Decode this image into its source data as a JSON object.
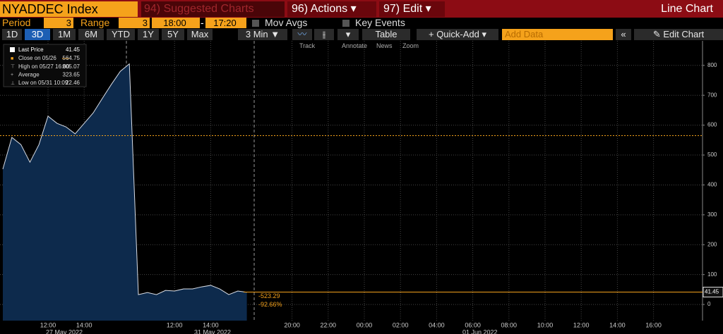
{
  "toolbar": {
    "security": "NYADDEC Index",
    "menus": [
      "94) Suggested Charts",
      "96) Actions",
      "97) Edit"
    ],
    "chart_type": "Line Chart",
    "period_label": "Period",
    "period_value": "3",
    "range_label": "Range",
    "range_value": "3",
    "start_time": "18:00",
    "end_time": "17:20",
    "mov_avgs": "Mov Avgs",
    "key_events": "Key Events",
    "periods": [
      "1D",
      "3D",
      "1M",
      "6M",
      "YTD",
      "1Y",
      "5Y",
      "Max"
    ],
    "interval": "3 Min",
    "table": "Table",
    "quick_add": "Quick-Add",
    "add_data": "Add Data",
    "edit_chart": "Edit Chart",
    "tools": [
      "Track",
      "Annotate",
      "News",
      "Zoom"
    ]
  },
  "chart_data": {
    "type": "line",
    "categories": [
      null,
      null,
      null,
      null,
      null,
      "12:00",
      null,
      null,
      null,
      "14:00",
      null,
      null,
      null,
      null,
      null,
      null,
      null,
      null,
      null,
      "12:00",
      null,
      null,
      null,
      "14:00",
      null,
      null,
      null,
      null,
      null,
      null,
      null,
      null,
      "20:00",
      null,
      null,
      null,
      "22:00",
      null,
      null,
      null,
      "00:00",
      null,
      null,
      null,
      "02:00",
      null,
      null,
      null,
      "04:00",
      null,
      null,
      null,
      "06:00",
      null,
      null,
      null,
      "08:00",
      null,
      null,
      null,
      "10:00",
      null,
      null,
      null,
      "12:00",
      null,
      null,
      null,
      "14:00",
      null,
      null,
      null,
      "16:00",
      null,
      null,
      null,
      null,
      null
    ],
    "date_labels": [
      "27 May 2022",
      "31 May 2022",
      "01 Jun 2022"
    ],
    "series": [
      {
        "name": "Last Price",
        "color": "#d8dde6",
        "fill": "#0d2a4c",
        "values": [
          453,
          559,
          535,
          476,
          535,
          630,
          606,
          594,
          571,
          606,
          641,
          689,
          736,
          780,
          805,
          33,
          40,
          33,
          47,
          45,
          52,
          52,
          59,
          64,
          52,
          33,
          45,
          41,
          null,
          null,
          null,
          null,
          null,
          null,
          null,
          null,
          null,
          null,
          null,
          null,
          null,
          null,
          null,
          null,
          null,
          null,
          null,
          null,
          null,
          null,
          null,
          null,
          null,
          null,
          null,
          null,
          null,
          null,
          null,
          null,
          null,
          null,
          null,
          null,
          null,
          null,
          null,
          null,
          null,
          null,
          null,
          null,
          null,
          null,
          null,
          null,
          null,
          null
        ]
      }
    ],
    "last_value": 41.45,
    "stats": [
      {
        "name": "Close on 05/26",
        "value": 564.75
      },
      {
        "name": "High on 05/27 16:00",
        "value": 805.07
      },
      {
        "name": "Average",
        "value": 323.65
      },
      {
        "name": "Low on 05/31 10:09",
        "value": 22.46
      }
    ],
    "change_labels": [
      "-523.29",
      "-92.66%"
    ],
    "ref_color": "#f5a21b",
    "ylim": [
      -54,
      882
    ],
    "yticks": [
      0,
      100,
      200,
      300,
      400,
      500,
      600,
      700,
      800
    ],
    "grid": true
  }
}
